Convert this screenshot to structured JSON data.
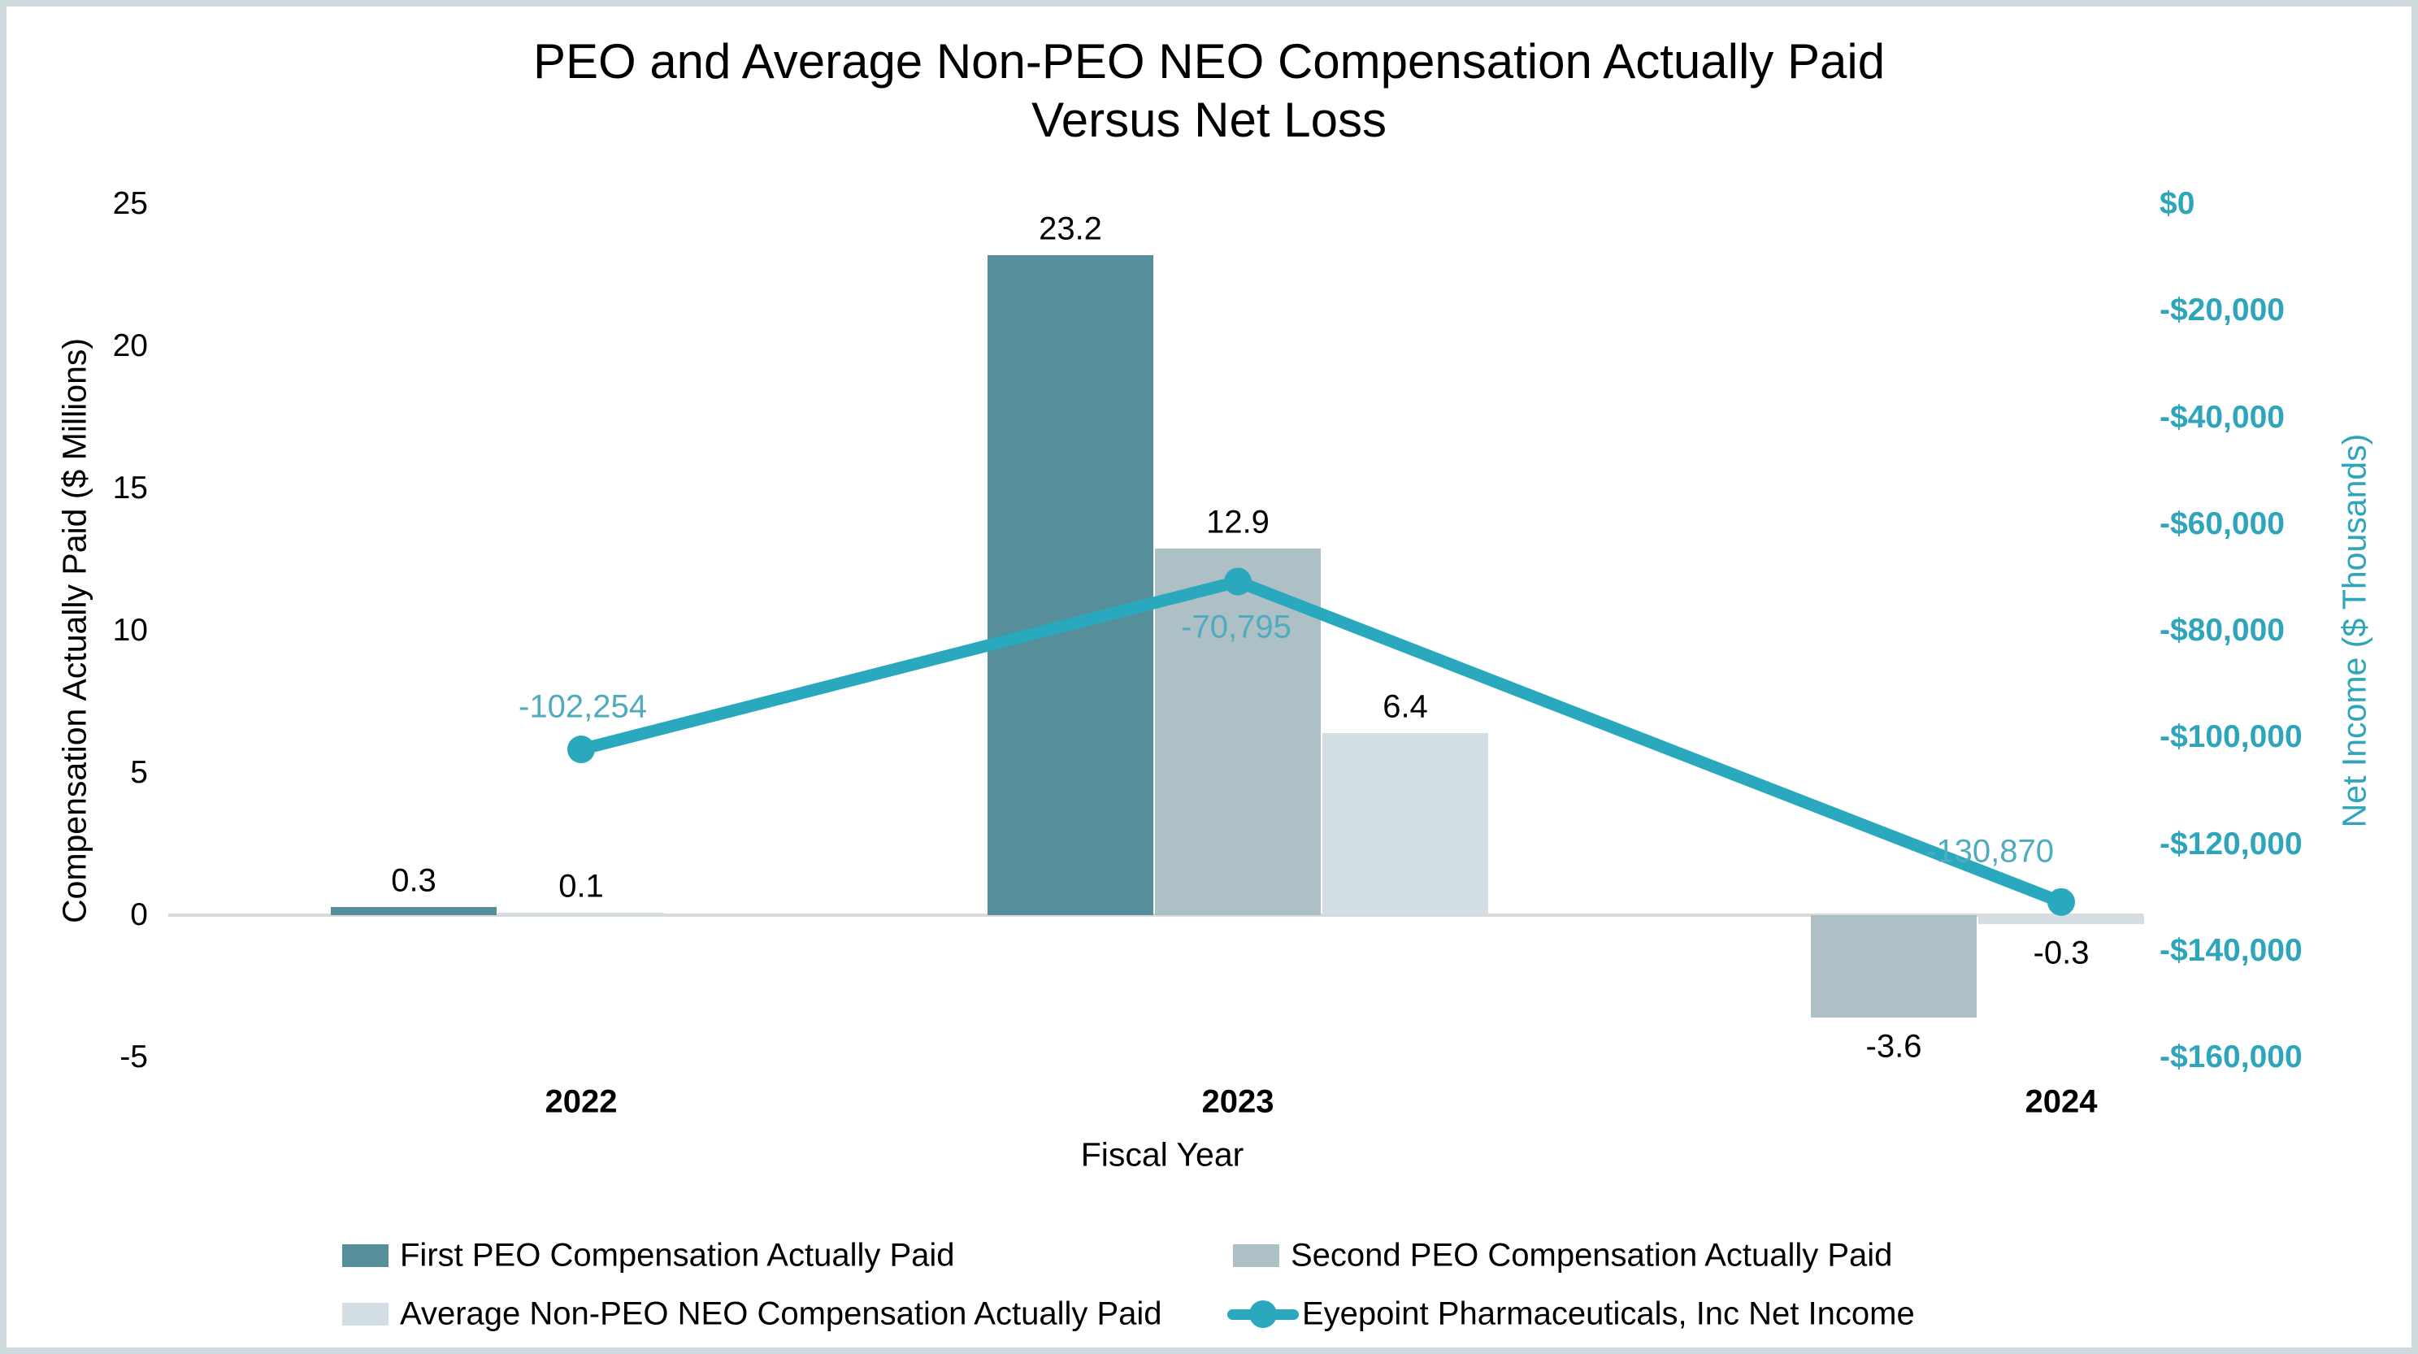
{
  "title": {
    "line1": "PEO and Average Non-PEO NEO Compensation Actually Paid",
    "line2": "Versus Net Loss"
  },
  "colors": {
    "first_peo": "#568E9A",
    "second_peo": "#ACC0C6",
    "avg_neo": "#D4DFE5",
    "accent_teal": "#29A8BE",
    "right_axis_teal": "#2FA5BB",
    "point_label_teal": "#4FABBE",
    "gridline": "#D9D9D9",
    "frame_border": "#CFDADF",
    "bar_label": "#000000"
  },
  "chart_data": {
    "type": "combo-bar-line",
    "categories": [
      "2022",
      "2023",
      "2024"
    ],
    "bar_series": [
      {
        "key": "first-peo",
        "name": "First PEO Compensation Actually Paid",
        "color_ref": "first_peo",
        "values": [
          0.3,
          23.2,
          null
        ],
        "labels": [
          "0.3",
          "23.2",
          null
        ]
      },
      {
        "key": "second-peo",
        "name": "Second PEO Compensation Actually Paid",
        "color_ref": "second_peo",
        "values": [
          null,
          12.9,
          -3.6
        ],
        "labels": [
          null,
          "12.9",
          "-3.6"
        ]
      },
      {
        "key": "avg-non-peo-neo",
        "name": "Average Non-PEO NEO Compensation Actually Paid",
        "color_ref": "avg_neo",
        "values": [
          0.1,
          6.4,
          -0.3
        ],
        "labels": [
          "0.1",
          "6.4",
          "-0.3"
        ]
      }
    ],
    "line_series": {
      "key": "net-income",
      "name": "Eyepoint Pharmaceuticals, Inc Net Income",
      "color_ref": "accent_teal",
      "values": [
        -102254,
        -70795,
        -130870
      ],
      "labels": [
        "-102,254",
        "-70,795",
        "-130,870"
      ]
    },
    "left_axis": {
      "title": "Compensation Actually Paid ($ Millions)",
      "tick_labels": [
        "25",
        "20",
        "15",
        "10",
        "5",
        "0",
        "-5"
      ],
      "tick_values": [
        25,
        20,
        15,
        10,
        5,
        0,
        -5
      ],
      "range": [
        -5,
        25
      ],
      "units": "$ Millions"
    },
    "right_axis": {
      "title": "Net Income ($ Thousands)",
      "tick_labels": [
        "$0",
        "-$20,000",
        "-$40,000",
        "-$60,000",
        "-$80,000",
        "-$100,000",
        "-$120,000",
        "-$140,000",
        "-$160,000"
      ],
      "tick_values": [
        0,
        -20000,
        -40000,
        -60000,
        -80000,
        -100000,
        -120000,
        -140000,
        -160000
      ],
      "range": [
        -160000,
        0
      ],
      "units": "$ Thousands"
    },
    "x_axis": {
      "title": "Fiscal Year"
    },
    "grid": "zero-line-only",
    "legend_position": "bottom"
  },
  "legend": {
    "row1_col1": "First PEO Compensation Actually Paid",
    "row1_col2": "Second PEO Compensation Actually Paid",
    "row2_col1": "Average Non-PEO NEO Compensation Actually Paid",
    "row2_col2": "Eyepoint Pharmaceuticals, Inc Net Income"
  }
}
